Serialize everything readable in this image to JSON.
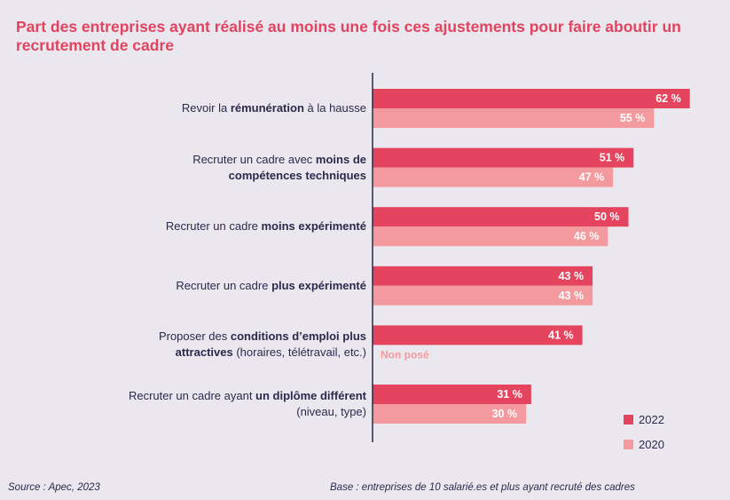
{
  "chart_data": {
    "type": "bar",
    "orientation": "horizontal",
    "title": "Part des entreprises ayant réalisé au moins une fois ces ajustements pour faire aboutir un recrutement de cadre",
    "categories": [
      {
        "parts": [
          {
            "t": "Revoir la ",
            "b": false
          },
          {
            "t": "rémunération",
            "b": true
          },
          {
            "t": " à la hausse",
            "b": false
          }
        ]
      },
      {
        "parts": [
          {
            "t": "Recruter un cadre avec ",
            "b": false
          },
          {
            "t": "moins de compétences techniques",
            "b": true
          }
        ]
      },
      {
        "parts": [
          {
            "t": "Recruter un cadre ",
            "b": false
          },
          {
            "t": "moins expérimenté",
            "b": true
          }
        ]
      },
      {
        "parts": [
          {
            "t": "Recruter un cadre ",
            "b": false
          },
          {
            "t": "plus expérimenté",
            "b": true
          }
        ]
      },
      {
        "parts": [
          {
            "t": "Proposer des ",
            "b": false
          },
          {
            "t": "conditions d’emploi plus attractives",
            "b": true
          },
          {
            "t": " (horaires, télétravail, etc.)",
            "b": false
          }
        ]
      },
      {
        "parts": [
          {
            "t": "Recruter un cadre ayant ",
            "b": false
          },
          {
            "t": "un diplôme différent",
            "b": true
          },
          {
            "t": " (niveau, type)",
            "b": false
          }
        ]
      }
    ],
    "series": [
      {
        "name": "2022",
        "color": "#e5445f",
        "values": [
          62,
          51,
          50,
          43,
          41,
          31
        ],
        "labels": [
          "62 %",
          "51 %",
          "50 %",
          "43 %",
          "41 %",
          "31 %"
        ]
      },
      {
        "name": "2020",
        "color": "#f29a9e",
        "values": [
          55,
          47,
          46,
          43,
          null,
          30
        ],
        "labels": [
          "55 %",
          "47 %",
          "46 %",
          "43 %",
          "",
          "30 %"
        ]
      }
    ],
    "missing_label": "Non posé",
    "xlim": [
      0,
      70
    ],
    "legend_position": "bottom-right",
    "grid": false
  },
  "footer": {
    "source": "Source : Apec, 2023",
    "base": "Base : entreprises de 10 salarié.es et plus ayant recruté des cadres"
  }
}
